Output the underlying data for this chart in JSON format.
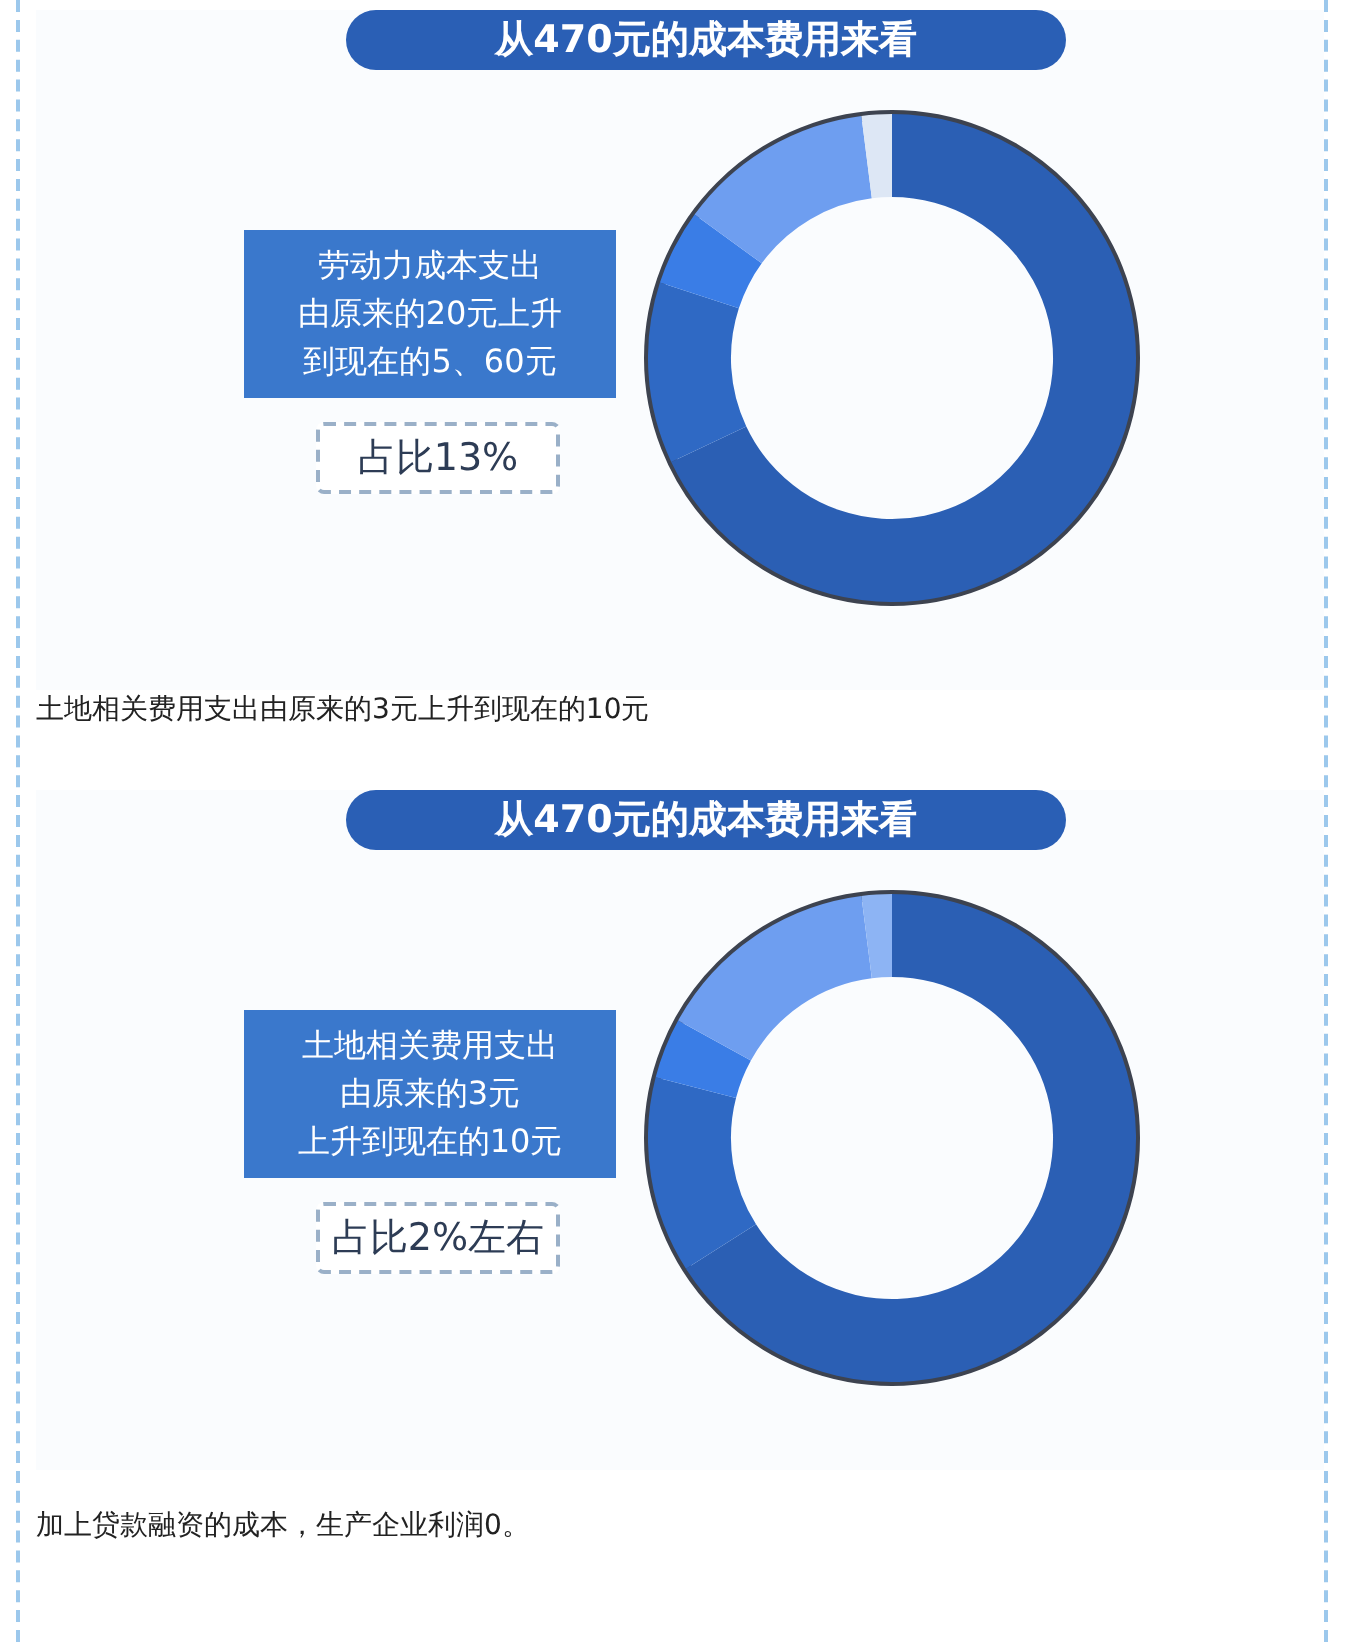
{
  "chart_data": [
    {
      "type": "donut",
      "title": "从470元的成本费用来看",
      "categories": [
        null,
        null,
        null,
        null,
        null
      ],
      "values": [
        68,
        12,
        5,
        13,
        2
      ],
      "colors": [
        "#2b5fb4",
        "#2f69c4",
        "#3a7de6",
        "#6e9ef0",
        "#dde7f5"
      ],
      "legend": false,
      "annotations": [
        "劳动力成本支出",
        "由原来的20元上升",
        "到现在的5、60元",
        "占比13%",
        "土地相关费用支出由原来的3元上升到现在的10元"
      ]
    },
    {
      "type": "donut",
      "title": "从470元的成本费用来看",
      "categories": [
        null,
        null,
        null,
        null,
        null
      ],
      "values": [
        66,
        13,
        4,
        15,
        2
      ],
      "colors": [
        "#2b5fb4",
        "#2f69c4",
        "#3a7de6",
        "#6e9ef0",
        "#8db4f4"
      ],
      "legend": false,
      "annotations": [
        "土地相关费用支出",
        "由原来的3元",
        "上升到现在的10元",
        "占比2%左右",
        "加上贷款融资的成本，生产企业利润0。"
      ]
    }
  ]
}
